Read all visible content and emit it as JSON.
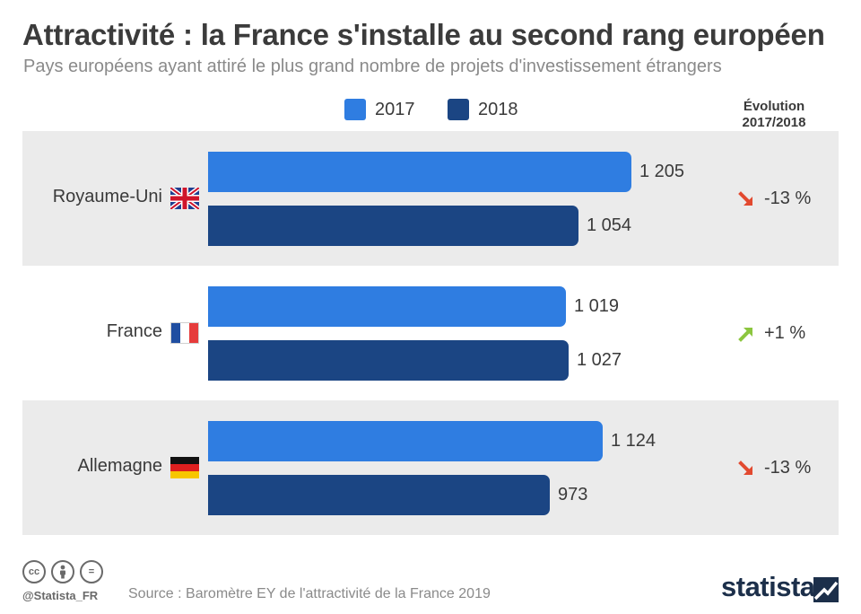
{
  "header": {
    "title": "Attractivité : la France s'installe au second rang européen",
    "subtitle": "Pays européens ayant attiré le plus grand nombre de projets d'investissement étrangers"
  },
  "legend": {
    "items": [
      {
        "label": "2017",
        "color": "#2f7de1"
      },
      {
        "label": "2018",
        "color": "#1b4583"
      }
    ]
  },
  "evolution_header": {
    "line1": "Évolution",
    "line2": "2017/2018"
  },
  "chart_data": {
    "type": "bar",
    "orientation": "horizontal",
    "title": "Attractivité : la France s'installe au second rang européen",
    "subtitle": "Pays européens ayant attiré le plus grand nombre de projets d'investissement étrangers",
    "categories": [
      "Royaume-Uni",
      "France",
      "Allemagne"
    ],
    "series": [
      {
        "name": "2017",
        "color": "#2f7de1",
        "values": [
          1205,
          1019,
          1124
        ],
        "labels": [
          "1 205",
          "1 019",
          "1 124"
        ]
      },
      {
        "name": "2018",
        "color": "#1b4583",
        "values": [
          1054,
          1027,
          973
        ],
        "labels": [
          "1 054",
          "1 027",
          "973"
        ]
      }
    ],
    "evolution": [
      {
        "text": "-13 %",
        "direction": "down",
        "color": "#e2492f"
      },
      {
        "text": "+1 %",
        "direction": "up",
        "color": "#8cc63f"
      },
      {
        "text": "-13 %",
        "direction": "down",
        "color": "#e2492f"
      }
    ],
    "flags": [
      "uk-flag-icon",
      "france-flag-icon",
      "germany-flag-icon"
    ],
    "xlim": [
      0,
      1300
    ],
    "legend_position": "top",
    "grid": false
  },
  "footer": {
    "icons": [
      "cc-icon",
      "by-icon",
      "nd-icon"
    ],
    "cc_label": "cc",
    "nd_label": "=",
    "handle": "@Statista_FR",
    "source": "Source : Baromètre EY de l'attractivité de la France 2019",
    "brand": "statista"
  }
}
